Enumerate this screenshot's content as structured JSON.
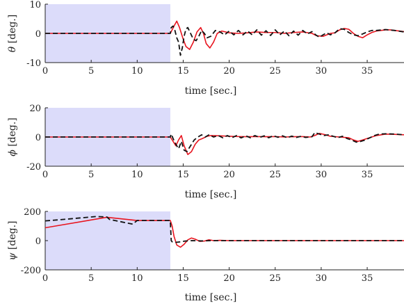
{
  "chart_data": [
    {
      "type": "line",
      "xlabel": "time [sec.]",
      "ylabel_symbol": "θ",
      "ylabel_unit": "[deg.]",
      "xlim": [
        0,
        39
      ],
      "ylim": [
        -10,
        10
      ],
      "xticks": [
        0,
        5,
        10,
        15,
        20,
        25,
        30,
        35
      ],
      "yticks": [
        -10,
        0,
        10
      ],
      "shaded_region": [
        0,
        13.6
      ],
      "grid": false,
      "series": [
        {
          "color": "#e8141e",
          "style": "solid",
          "points": [
            [
              0,
              0
            ],
            [
              13.6,
              0
            ],
            [
              14.0,
              2.5
            ],
            [
              14.3,
              4.2
            ],
            [
              14.6,
              2
            ],
            [
              15.0,
              -2
            ],
            [
              15.3,
              -4.5
            ],
            [
              15.7,
              -5.5
            ],
            [
              16.1,
              -3
            ],
            [
              16.5,
              0.5
            ],
            [
              16.9,
              2
            ],
            [
              17.2,
              0
            ],
            [
              17.5,
              -3.5
            ],
            [
              17.9,
              -5
            ],
            [
              18.3,
              -3
            ],
            [
              18.7,
              0
            ],
            [
              19.2,
              0.8
            ],
            [
              20,
              0.2
            ],
            [
              21,
              0
            ],
            [
              22,
              0.2
            ],
            [
              23,
              0.5
            ],
            [
              24,
              0.3
            ],
            [
              25,
              0.3
            ],
            [
              26,
              0
            ],
            [
              27,
              0.3
            ],
            [
              28,
              0.5
            ],
            [
              29,
              0
            ],
            [
              29.5,
              -0.8
            ],
            [
              30.2,
              -1
            ],
            [
              31,
              0
            ],
            [
              31.5,
              0.2
            ],
            [
              32,
              1.2
            ],
            [
              32.5,
              1.7
            ],
            [
              33,
              1.4
            ],
            [
              33.5,
              0
            ],
            [
              34.0,
              -1
            ],
            [
              34.5,
              -1.5
            ],
            [
              35,
              -0.5
            ],
            [
              35.5,
              0.3
            ],
            [
              36,
              0.8
            ],
            [
              37,
              1.2
            ],
            [
              37.5,
              1.2
            ],
            [
              38,
              1.0
            ],
            [
              39,
              0.6
            ]
          ]
        },
        {
          "color": "#111111",
          "style": "dashed",
          "points": [
            [
              0,
              0
            ],
            [
              13.6,
              0
            ],
            [
              13.7,
              2
            ],
            [
              13.9,
              2.5
            ],
            [
              14.1,
              1
            ],
            [
              14.3,
              -1.5
            ],
            [
              14.5,
              -3
            ],
            [
              14.7,
              -7.5
            ],
            [
              14.9,
              -5
            ],
            [
              15.1,
              -1
            ],
            [
              15.3,
              1.5
            ],
            [
              15.5,
              2
            ],
            [
              15.8,
              0
            ],
            [
              16.1,
              -2
            ],
            [
              16.4,
              -2.5
            ],
            [
              16.7,
              -1
            ],
            [
              17.0,
              1
            ],
            [
              17.3,
              0
            ],
            [
              17.6,
              -1.5
            ],
            [
              18.0,
              -1
            ],
            [
              18.5,
              1
            ],
            [
              19,
              0.5
            ],
            [
              19.5,
              -0.5
            ],
            [
              20,
              0.8
            ],
            [
              20.5,
              -0.5
            ],
            [
              21,
              1
            ],
            [
              21.5,
              -0.5
            ],
            [
              22,
              0.8
            ],
            [
              22.5,
              -0.5
            ],
            [
              23,
              1.2
            ],
            [
              23.5,
              -0.6
            ],
            [
              24,
              0.9
            ],
            [
              24.5,
              -0.7
            ],
            [
              25,
              1.2
            ],
            [
              25.5,
              -0.5
            ],
            [
              26,
              0.8
            ],
            [
              26.5,
              -0.8
            ],
            [
              27,
              0.8
            ],
            [
              27.5,
              -0.6
            ],
            [
              28,
              1
            ],
            [
              28.5,
              -0.2
            ],
            [
              29.0,
              0.6
            ],
            [
              29.4,
              -0.5
            ],
            [
              29.8,
              -1.3
            ],
            [
              30.2,
              -0.5
            ],
            [
              30.6,
              0.2
            ],
            [
              31,
              -0.5
            ],
            [
              31.5,
              0.2
            ],
            [
              32,
              1.6
            ],
            [
              32.5,
              1.4
            ],
            [
              33,
              0.3
            ],
            [
              33.5,
              -0.5
            ],
            [
              34,
              -0.8
            ],
            [
              34.5,
              -0.2
            ],
            [
              35,
              0.5
            ],
            [
              35.5,
              1
            ],
            [
              36,
              1
            ],
            [
              37,
              1.3
            ],
            [
              38,
              1.0
            ],
            [
              39,
              0.5
            ]
          ]
        }
      ]
    },
    {
      "type": "line",
      "xlabel": "time [sec.]",
      "ylabel_symbol": "ϕ",
      "ylabel_unit": "[deg.]",
      "xlim": [
        0,
        39
      ],
      "ylim": [
        -20,
        20
      ],
      "xticks": [
        0,
        5,
        10,
        15,
        20,
        25,
        30,
        35
      ],
      "yticks": [
        -20,
        0,
        20
      ],
      "shaded_region": [
        0,
        13.6
      ],
      "grid": false,
      "series": [
        {
          "color": "#e8141e",
          "style": "solid",
          "points": [
            [
              0,
              0
            ],
            [
              13.6,
              0
            ],
            [
              13.9,
              -3
            ],
            [
              14.2,
              -6
            ],
            [
              14.5,
              -2
            ],
            [
              14.8,
              1
            ],
            [
              15.1,
              -6
            ],
            [
              15.5,
              -12
            ],
            [
              15.9,
              -10
            ],
            [
              16.3,
              -5
            ],
            [
              16.7,
              -2
            ],
            [
              17.1,
              -1
            ],
            [
              17.6,
              0.5
            ],
            [
              18,
              1
            ],
            [
              19,
              0.8
            ],
            [
              20,
              0.5
            ],
            [
              21,
              0.3
            ],
            [
              22,
              0.2
            ],
            [
              23,
              0.3
            ],
            [
              24,
              0.2
            ],
            [
              25,
              0.3
            ],
            [
              26,
              0
            ],
            [
              27,
              0.2
            ],
            [
              28,
              0.3
            ],
            [
              28.8,
              0
            ],
            [
              29.3,
              1
            ],
            [
              29.8,
              2.5
            ],
            [
              30.5,
              1.5
            ],
            [
              31,
              0.5
            ],
            [
              32,
              0
            ],
            [
              33,
              -0.5
            ],
            [
              33.5,
              -2
            ],
            [
              34,
              -3
            ],
            [
              34.5,
              -2
            ],
            [
              35,
              -1
            ],
            [
              35.5,
              0
            ],
            [
              36,
              1
            ],
            [
              37,
              2
            ],
            [
              38,
              1.8
            ],
            [
              39,
              1.5
            ]
          ]
        },
        {
          "color": "#111111",
          "style": "dashed",
          "points": [
            [
              0,
              0
            ],
            [
              13.6,
              0
            ],
            [
              13.7,
              2
            ],
            [
              13.9,
              -1
            ],
            [
              14.2,
              -5
            ],
            [
              14.5,
              -8
            ],
            [
              14.8,
              -3
            ],
            [
              15.1,
              -9
            ],
            [
              15.4,
              -10
            ],
            [
              15.8,
              -6
            ],
            [
              16.2,
              -2
            ],
            [
              16.6,
              0
            ],
            [
              17,
              1.5
            ],
            [
              17.4,
              0
            ],
            [
              17.8,
              1.5
            ],
            [
              18.3,
              0
            ],
            [
              18.8,
              1
            ],
            [
              19.3,
              -0.5
            ],
            [
              19.8,
              1
            ],
            [
              20.3,
              -0.5
            ],
            [
              20.8,
              1
            ],
            [
              21.3,
              -0.6
            ],
            [
              21.8,
              0.8
            ],
            [
              22.3,
              -0.5
            ],
            [
              22.8,
              1
            ],
            [
              23.3,
              -0.3
            ],
            [
              23.8,
              0.8
            ],
            [
              24.3,
              -0.5
            ],
            [
              24.8,
              0.9
            ],
            [
              25.3,
              -0.2
            ],
            [
              25.8,
              0.8
            ],
            [
              26.3,
              -0.5
            ],
            [
              26.8,
              0.6
            ],
            [
              27.3,
              -0.3
            ],
            [
              27.8,
              0.5
            ],
            [
              28.3,
              -0.3
            ],
            [
              29.0,
              0.2
            ],
            [
              29.3,
              3
            ],
            [
              29.8,
              2
            ],
            [
              30.3,
              1
            ],
            [
              30.8,
              1.5
            ],
            [
              31.3,
              0.5
            ],
            [
              31.8,
              -0.5
            ],
            [
              32.3,
              0.5
            ],
            [
              32.8,
              -1
            ],
            [
              33.3,
              -2
            ],
            [
              33.8,
              -3.5
            ],
            [
              34.3,
              -3
            ],
            [
              34.8,
              -2
            ],
            [
              35.3,
              -0.5
            ],
            [
              35.8,
              1
            ],
            [
              36.3,
              2
            ],
            [
              37,
              2.2
            ],
            [
              38,
              2
            ],
            [
              39,
              1.5
            ]
          ]
        }
      ]
    },
    {
      "type": "line",
      "xlabel": "time [sec.]",
      "ylabel_symbol": "ψ",
      "ylabel_unit": "[deg.]",
      "xlim": [
        0,
        39
      ],
      "ylim": [
        -200,
        200
      ],
      "xticks": [
        0,
        5,
        10,
        15,
        20,
        25,
        30,
        35
      ],
      "yticks": [
        -200,
        0,
        200
      ],
      "shaded_region": [
        0,
        13.6
      ],
      "grid": false,
      "series": [
        {
          "color": "#e8141e",
          "style": "solid",
          "points": [
            [
              0,
              88
            ],
            [
              6.7,
              160
            ],
            [
              10,
              138
            ],
            [
              13.6,
              138
            ],
            [
              13.8,
              100
            ],
            [
              14.0,
              30
            ],
            [
              14.3,
              -30
            ],
            [
              14.7,
              -45
            ],
            [
              15.1,
              -25
            ],
            [
              15.5,
              5
            ],
            [
              15.9,
              18
            ],
            [
              16.3,
              10
            ],
            [
              16.8,
              -5
            ],
            [
              17.3,
              -3
            ],
            [
              17.8,
              6
            ],
            [
              18.3,
              0
            ],
            [
              19,
              2
            ],
            [
              20,
              0
            ],
            [
              39,
              0
            ]
          ]
        },
        {
          "color": "#111111",
          "style": "dashed",
          "points": [
            [
              0,
              135
            ],
            [
              2.5,
              148
            ],
            [
              5.5,
              165
            ],
            [
              6.7,
              162
            ],
            [
              7,
              145
            ],
            [
              9.5,
              113
            ],
            [
              10,
              138
            ],
            [
              13.6,
              138
            ],
            [
              13.7,
              0
            ],
            [
              13.8,
              -8
            ],
            [
              14.2,
              -12
            ],
            [
              14.7,
              -8
            ],
            [
              15.2,
              -3
            ],
            [
              16,
              0
            ],
            [
              17,
              -2
            ],
            [
              18,
              0
            ],
            [
              39,
              0
            ]
          ]
        }
      ]
    }
  ]
}
